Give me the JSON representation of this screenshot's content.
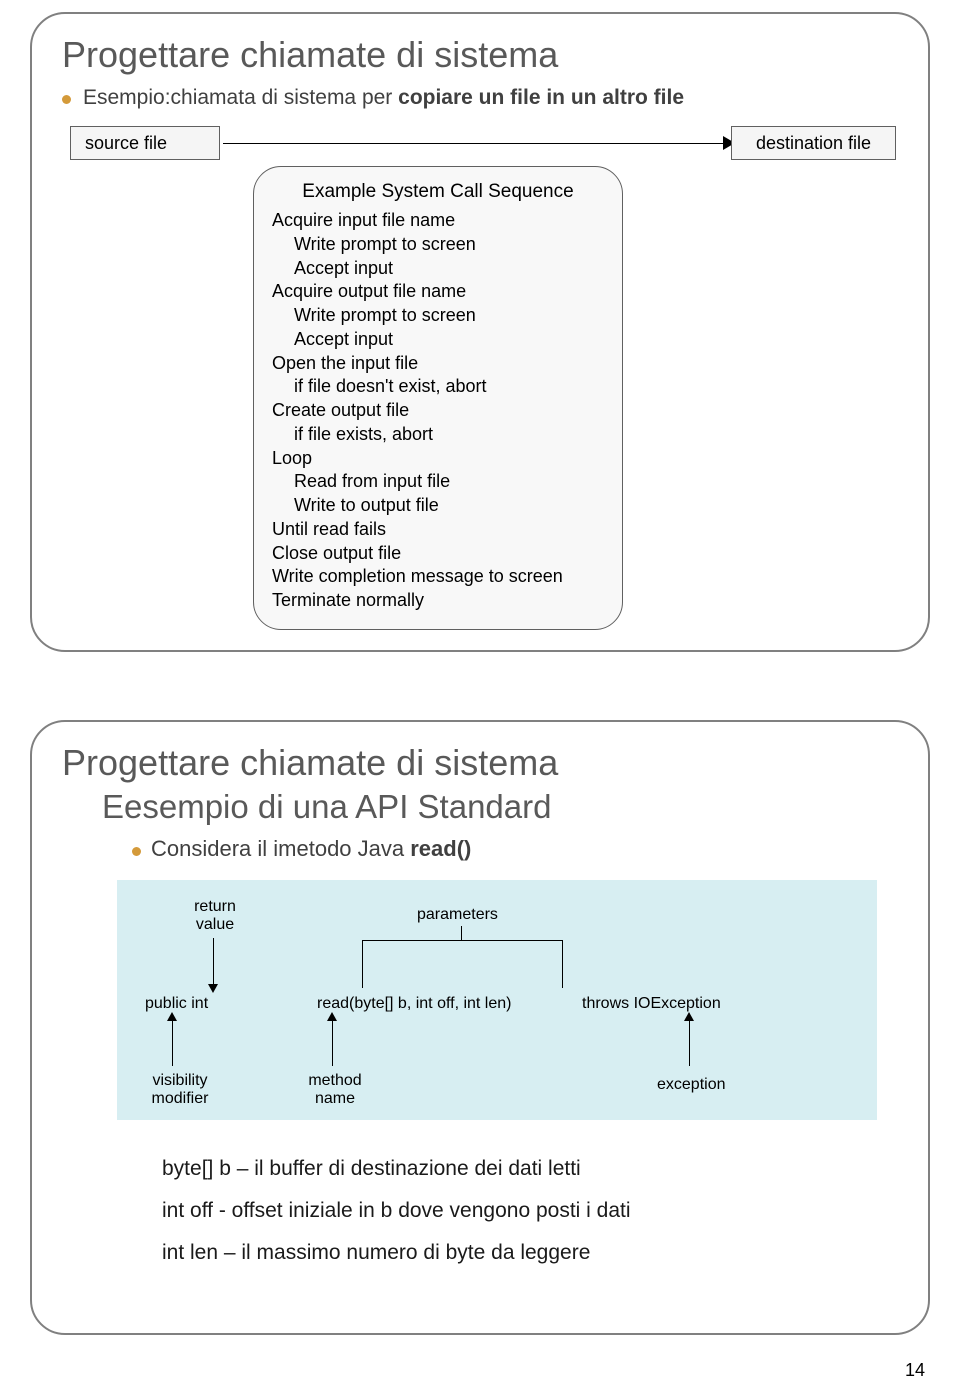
{
  "colors": {
    "bullet": "#d49a3a",
    "title_text": "#595959",
    "body_text": "#404040",
    "border": "#808080",
    "diagram_bg": "#d7eef2"
  },
  "page_number": "14",
  "slide1": {
    "title": "Progettare chiamate di sistema",
    "subtitle_prefix": "Esempio:chiamata di sistema per ",
    "subtitle_bold": "copiare un file in un altro file",
    "src_label": "source file",
    "dst_label": "destination  file",
    "seq_title": "Example System Call Sequence",
    "seq_lines": [
      {
        "t": "Acquire input file name",
        "i": 0
      },
      {
        "t": "Write prompt to screen",
        "i": 1
      },
      {
        "t": "Accept input",
        "i": 1
      },
      {
        "t": "Acquire output file name",
        "i": 0
      },
      {
        "t": "Write prompt to screen",
        "i": 1
      },
      {
        "t": "Accept input",
        "i": 1
      },
      {
        "t": "Open the input file",
        "i": 0
      },
      {
        "t": "if file doesn't exist, abort",
        "i": 1
      },
      {
        "t": "Create output file",
        "i": 0
      },
      {
        "t": "if file exists, abort",
        "i": 1
      },
      {
        "t": "Loop",
        "i": 0
      },
      {
        "t": "Read from input file",
        "i": 1
      },
      {
        "t": "Write to output file",
        "i": 1
      },
      {
        "t": "Until read fails",
        "i": 0
      },
      {
        "t": "Close output file",
        "i": 0
      },
      {
        "t": "Write completion message to screen",
        "i": 0
      },
      {
        "t": "Terminate normally",
        "i": 0
      }
    ]
  },
  "slide2": {
    "title": "Progettare chiamate di sistema",
    "subtitle": "Eesempio di una API Standard",
    "bullet_prefix": "Considera il imetodo Java ",
    "bullet_bold": "read()",
    "labels": {
      "return_value": "return\nvalue",
      "parameters": "parameters",
      "public_int": "public int",
      "signature": "read(byte[] b, int off, int len)",
      "throws": "throws IOException",
      "visibility": "visibility\nmodifier",
      "method_name": "method\nname",
      "exception": "exception"
    },
    "params": [
      "byte[] b – il buffer di destinazione dei dati letti",
      "int off - offset iniziale in b dove vengono posti i dati",
      "int len – il massimo numero di byte da leggere"
    ]
  }
}
